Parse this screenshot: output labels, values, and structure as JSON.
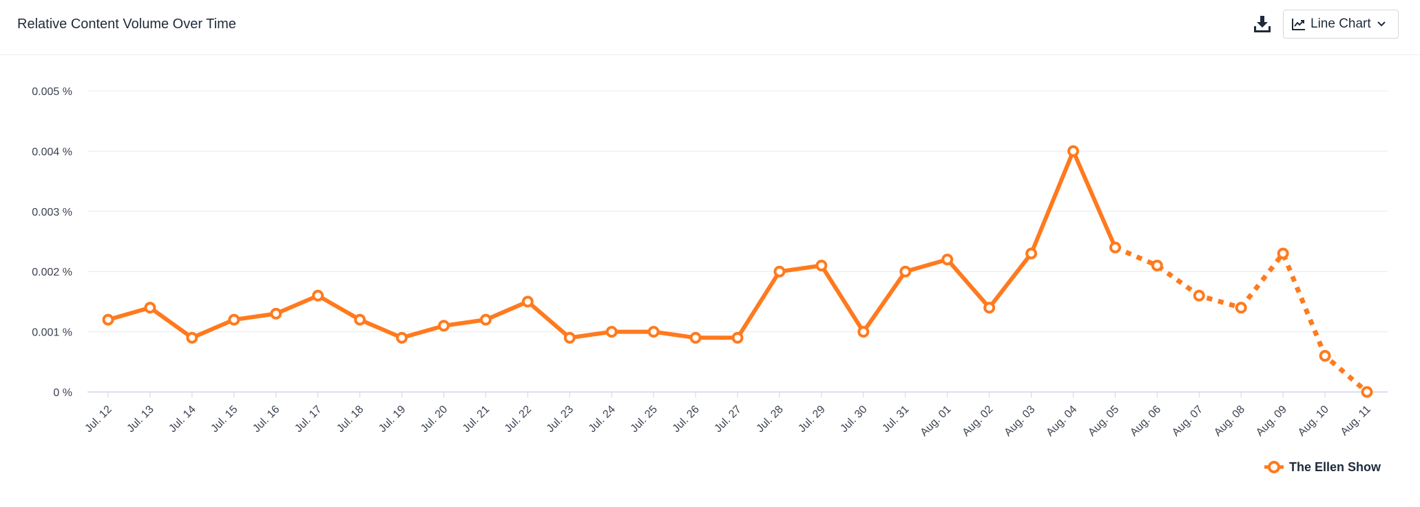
{
  "header": {
    "title": "Relative Content Volume Over Time",
    "download_icon": "download-icon",
    "chart_type_label": "Line Chart",
    "chart_type_icon": "line-chart-icon",
    "dropdown_icon": "chevron-down-icon"
  },
  "colors": {
    "series": "#ff7a1e",
    "grid": "#e6e8ee",
    "axis": "#cfd3ee",
    "text": "#1e2a3c",
    "tick_text": "#3a4150"
  },
  "chart_data": {
    "type": "line",
    "title": "Relative Content Volume Over Time",
    "xlabel": "",
    "ylabel": "",
    "ylim": [
      0,
      0.005
    ],
    "yticks": [
      "0 %",
      "0.001 %",
      "0.002 %",
      "0.003 %",
      "0.004 %",
      "0.005 %"
    ],
    "grid": true,
    "legend_position": "bottom-right",
    "categories": [
      "Jul. 12",
      "Jul. 13",
      "Jul. 14",
      "Jul. 15",
      "Jul. 16",
      "Jul. 17",
      "Jul. 18",
      "Jul. 19",
      "Jul. 20",
      "Jul. 21",
      "Jul. 22",
      "Jul. 23",
      "Jul. 24",
      "Jul. 25",
      "Jul. 26",
      "Jul. 27",
      "Jul. 28",
      "Jul. 29",
      "Jul. 30",
      "Jul. 31",
      "Aug. 01",
      "Aug. 02",
      "Aug. 03",
      "Aug. 04",
      "Aug. 05",
      "Aug. 06",
      "Aug. 07",
      "Aug. 08",
      "Aug. 09",
      "Aug. 10",
      "Aug. 11"
    ],
    "series": [
      {
        "name": "The Ellen Show",
        "values": [
          0.0012,
          0.0014,
          0.0009,
          0.0012,
          0.0013,
          0.0016,
          0.0012,
          0.0009,
          0.0011,
          0.0012,
          0.0015,
          0.0009,
          0.001,
          0.001,
          0.0009,
          0.0009,
          0.002,
          0.0021,
          0.001,
          0.002,
          0.0022,
          0.0014,
          0.0023,
          0.004,
          0.0024,
          0.0021,
          0.0016,
          0.0014,
          0.0023,
          0.0006,
          0.0
        ],
        "dashed_from_category": "Aug. 05"
      }
    ]
  }
}
